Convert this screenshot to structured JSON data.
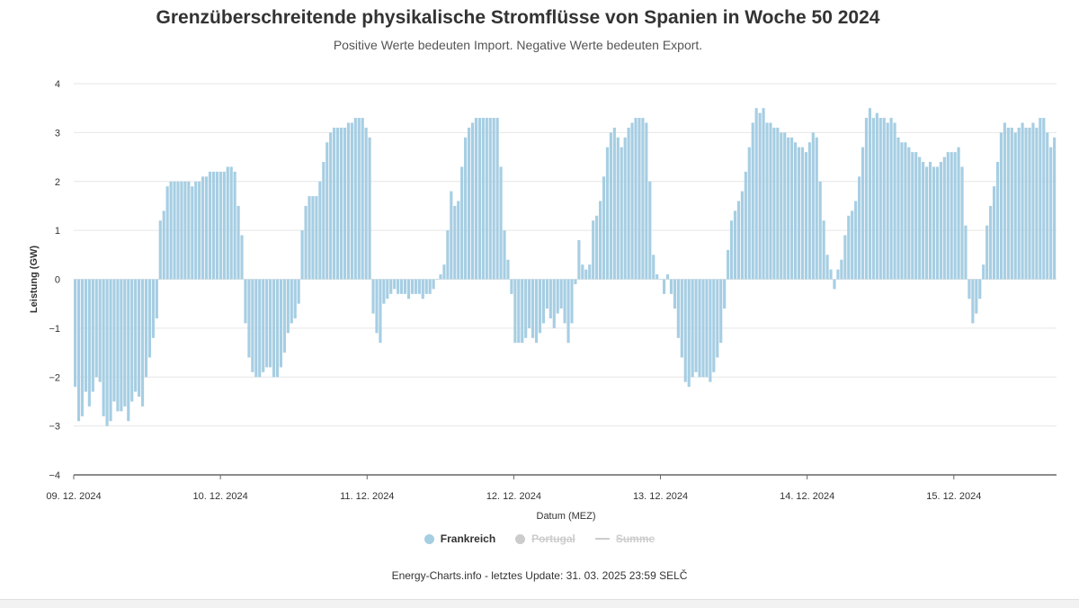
{
  "page": {
    "title": "Grenzüberschreitende physikalische Stromflüsse von Spanien in Woche 50 2024",
    "subtitle": "Positive Werte bedeuten Import. Negative Werte bedeuten Export.",
    "credit": "Energy-Charts.info - letztes Update: 31. 03. 2025 23:59 SELČ"
  },
  "legend": {
    "items": [
      {
        "label": "Frankreich",
        "color": "#a6cee3",
        "marker": "dot",
        "hidden": false
      },
      {
        "label": "Portugal",
        "color": "#cccccc",
        "marker": "dot",
        "hidden": true
      },
      {
        "label": "Summe",
        "color": "#cccccc",
        "marker": "line",
        "hidden": true
      }
    ]
  },
  "chart_data": {
    "type": "bar",
    "title": "Grenzüberschreitende physikalische Stromflüsse von Spanien in Woche 50 2024",
    "subtitle": "Positive Werte bedeuten Import. Negative Werte bedeuten Export.",
    "xlabel": "Datum (MEZ)",
    "ylabel": "Leistung (GW)",
    "ylim": [
      -4,
      4
    ],
    "y_ticks": [
      -4,
      -3,
      -2,
      -1,
      0,
      1,
      2,
      3,
      4
    ],
    "y_tick_labels": [
      "−4",
      "−3",
      "−2",
      "−1",
      "0",
      "1",
      "2",
      "3",
      "4"
    ],
    "x_tick_labels": [
      "09. 12. 2024",
      "10. 12. 2024",
      "11. 12. 2024",
      "12. 12. 2024",
      "13. 12. 2024",
      "14. 12. 2024",
      "15. 12. 2024"
    ],
    "grid": true,
    "legend_position": "bottom-center",
    "resolution": "hourly",
    "series": [
      {
        "name": "Frankreich",
        "color": "#a6cee3",
        "visible": true,
        "values": [
          -2.2,
          -2.9,
          -2.8,
          -2.3,
          -2.6,
          -2.3,
          -2.0,
          -2.1,
          -2.8,
          -3.0,
          -2.9,
          -2.5,
          -2.7,
          -2.7,
          -2.6,
          -2.9,
          -2.5,
          -2.3,
          -2.4,
          -2.6,
          -2.0,
          -1.6,
          -1.2,
          -0.8,
          1.2,
          1.4,
          1.9,
          2.0,
          2.0,
          2.0,
          2.0,
          2.0,
          2.0,
          1.9,
          2.0,
          2.0,
          2.1,
          2.1,
          2.2,
          2.2,
          2.2,
          2.2,
          2.2,
          2.3,
          2.3,
          2.2,
          1.5,
          0.9,
          -0.9,
          -1.6,
          -1.9,
          -2.0,
          -2.0,
          -1.9,
          -1.8,
          -1.8,
          -2.0,
          -2.0,
          -1.8,
          -1.5,
          -1.1,
          -0.9,
          -0.8,
          -0.5,
          1.0,
          1.5,
          1.7,
          1.7,
          1.7,
          2.0,
          2.4,
          2.8,
          3.0,
          3.1,
          3.1,
          3.1,
          3.1,
          3.2,
          3.2,
          3.3,
          3.3,
          3.3,
          3.1,
          2.9,
          -0.7,
          -1.1,
          -1.3,
          -0.5,
          -0.4,
          -0.3,
          -0.2,
          -0.3,
          -0.3,
          -0.3,
          -0.4,
          -0.3,
          -0.3,
          -0.3,
          -0.4,
          -0.3,
          -0.3,
          -0.2,
          0.0,
          0.1,
          0.3,
          1.0,
          1.8,
          1.5,
          1.6,
          2.3,
          2.9,
          3.1,
          3.2,
          3.3,
          3.3,
          3.3,
          3.3,
          3.3,
          3.3,
          3.3,
          2.3,
          1.0,
          0.4,
          -0.3,
          -1.3,
          -1.3,
          -1.3,
          -1.2,
          -1.0,
          -1.2,
          -1.3,
          -1.1,
          -0.9,
          -0.6,
          -0.8,
          -1.0,
          -0.7,
          -0.6,
          -0.9,
          -1.3,
          -0.9,
          -0.1,
          0.8,
          0.3,
          0.2,
          0.3,
          1.2,
          1.3,
          1.6,
          2.1,
          2.7,
          3.0,
          3.1,
          2.9,
          2.7,
          2.9,
          3.1,
          3.2,
          3.3,
          3.3,
          3.3,
          3.2,
          2.0,
          0.5,
          0.1,
          0.0,
          -0.3,
          0.1,
          -0.3,
          -0.6,
          -1.2,
          -1.6,
          -2.1,
          -2.2,
          -2.0,
          -1.9,
          -2.0,
          -2.0,
          -2.0,
          -2.1,
          -1.9,
          -1.6,
          -1.3,
          -0.6,
          0.6,
          1.2,
          1.4,
          1.6,
          1.8,
          2.2,
          2.7,
          3.2,
          3.5,
          3.4,
          3.5,
          3.2,
          3.2,
          3.1,
          3.1,
          3.0,
          3.0,
          2.9,
          2.9,
          2.8,
          2.7,
          2.7,
          2.6,
          2.8,
          3.0,
          2.9,
          2.0,
          1.2,
          0.5,
          0.2,
          -0.2,
          0.2,
          0.4,
          0.9,
          1.3,
          1.4,
          1.6,
          2.1,
          2.7,
          3.3,
          3.5,
          3.3,
          3.4,
          3.3,
          3.3,
          3.2,
          3.3,
          3.2,
          2.9,
          2.8,
          2.8,
          2.7,
          2.6,
          2.6,
          2.5,
          2.4,
          2.3,
          2.4,
          2.3,
          2.3,
          2.4,
          2.5,
          2.6,
          2.6,
          2.6,
          2.7,
          2.3,
          1.1,
          -0.4,
          -0.9,
          -0.7,
          -0.4,
          0.3,
          1.1,
          1.5,
          1.9,
          2.4,
          3.0,
          3.2,
          3.1,
          3.1,
          3.0,
          3.1,
          3.2,
          3.1,
          3.1,
          3.2,
          3.1,
          3.3,
          3.3,
          3.0,
          2.7,
          2.9
        ]
      },
      {
        "name": "Portugal",
        "color": "#cccccc",
        "visible": false
      },
      {
        "name": "Summe",
        "color": "#cccccc",
        "visible": false
      }
    ]
  }
}
